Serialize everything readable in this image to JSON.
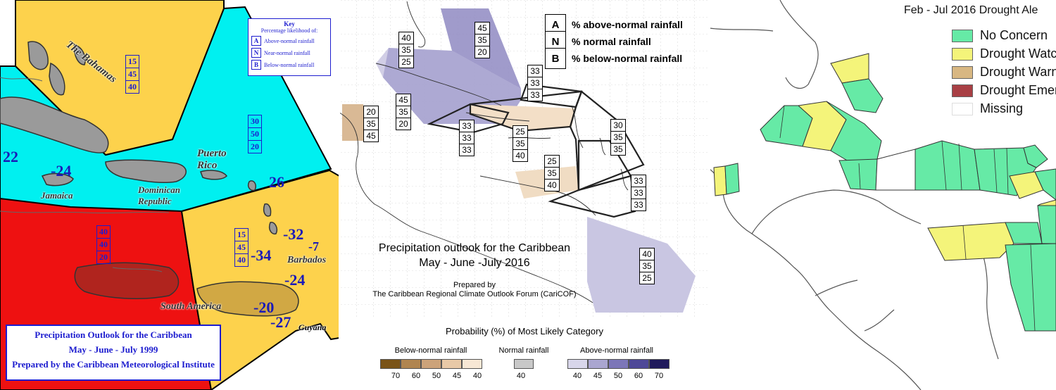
{
  "panel1": {
    "key": {
      "title": "Key",
      "subtitle": "Percentage likelihood of:",
      "rows": [
        {
          "letter": "A",
          "label": "Above-normal rainfall"
        },
        {
          "letter": "N",
          "label": "Near-normal rainfall"
        },
        {
          "letter": "B",
          "label": "Below-normal rainfall"
        }
      ]
    },
    "boxes": [
      {
        "id": "bahamas",
        "values": [
          "15",
          "45",
          "40"
        ]
      },
      {
        "id": "antilles",
        "values": [
          "30",
          "50",
          "20"
        ]
      },
      {
        "id": "south",
        "values": [
          "40",
          "40",
          "20"
        ]
      },
      {
        "id": "east",
        "values": [
          "15",
          "45",
          "40"
        ]
      }
    ],
    "numbers": [
      "22",
      "-24",
      "26",
      "-32",
      "-7",
      "-34",
      "-24",
      "-20",
      "-27"
    ],
    "places": {
      "bahamas": "The Bahamas",
      "puerto_rico": "Puerto Rico",
      "jamaica": "Jamaica",
      "dominican": "Dominican Republic",
      "barbados": "Barbados",
      "south_america": "South America",
      "guyana": "Guyana"
    },
    "title_lines": [
      "Precipitation Outlook for the Caribbean",
      "May - June - July  1999",
      "Prepared by the Caribbean Meteorological Institute"
    ],
    "colors": {
      "yellow": "#fdd24c",
      "cyan": "#00f0f0",
      "red": "#ee1111",
      "text": "#1c1ccf"
    }
  },
  "panel2": {
    "legend": [
      {
        "letter": "A",
        "label": "% above-normal rainfall"
      },
      {
        "letter": "N",
        "label": "% normal rainfall"
      },
      {
        "letter": "B",
        "label": "% below-normal rainfall"
      }
    ],
    "boxes": [
      {
        "id": "bahamas-west",
        "values": [
          "40",
          "35",
          "25"
        ]
      },
      {
        "id": "bahamas-east",
        "values": [
          "45",
          "35",
          "20"
        ]
      },
      {
        "id": "cuba",
        "values": [
          "45",
          "35",
          "20"
        ]
      },
      {
        "id": "belize",
        "values": [
          "20",
          "35",
          "45"
        ]
      },
      {
        "id": "jamaica",
        "values": [
          "33",
          "33",
          "33"
        ]
      },
      {
        "id": "hispaniola",
        "values": [
          "33",
          "33",
          "33"
        ]
      },
      {
        "id": "caribbean-sea",
        "values": [
          "25",
          "35",
          "40"
        ]
      },
      {
        "id": "colombia",
        "values": [
          "25",
          "35",
          "40"
        ]
      },
      {
        "id": "leewards",
        "values": [
          "30",
          "35",
          "35"
        ]
      },
      {
        "id": "barbados",
        "values": [
          "33",
          "33",
          "33"
        ]
      },
      {
        "id": "guianas",
        "values": [
          "40",
          "35",
          "25"
        ]
      }
    ],
    "title_lines": [
      "Precipitation outlook for the Caribbean",
      "May - June -July 2016"
    ],
    "prepared_lines": [
      "Prepared by",
      "The Caribbean Regional Climate Outlook Forum (CariCOF)"
    ],
    "scale_title": "Probability (%) of Most Likely Category",
    "scale_groups": [
      {
        "label": "Below-normal rainfall",
        "ticks": [
          "70",
          "60",
          "50",
          "45",
          "40"
        ]
      },
      {
        "label": "Normal rainfall",
        "ticks": [
          "40"
        ]
      },
      {
        "label": "Above-normal rainfall",
        "ticks": [
          "40",
          "45",
          "50",
          "60",
          "70"
        ]
      }
    ],
    "colors": {
      "below": [
        "#7a5418",
        "#b08550",
        "#cca37a",
        "#e8c9a7",
        "#f7e7d5"
      ],
      "normal": "#c8c8c8",
      "above": [
        "#d8d6ea",
        "#aaa6d0",
        "#7c76b8",
        "#4e4898",
        "#201a5c"
      ]
    }
  },
  "panel3": {
    "title": "Feb - Jul 2016 Drought Ale",
    "legend": [
      {
        "label": "No Concern",
        "color": "#66eaa6"
      },
      {
        "label": "Drought Watc",
        "color": "#f4f47a"
      },
      {
        "label": "Drought Warn",
        "color": "#d8b782"
      },
      {
        "label": "Drought Emer",
        "color": "#a83f44"
      },
      {
        "label": "Missing",
        "color": "#ffffff"
      }
    ]
  }
}
